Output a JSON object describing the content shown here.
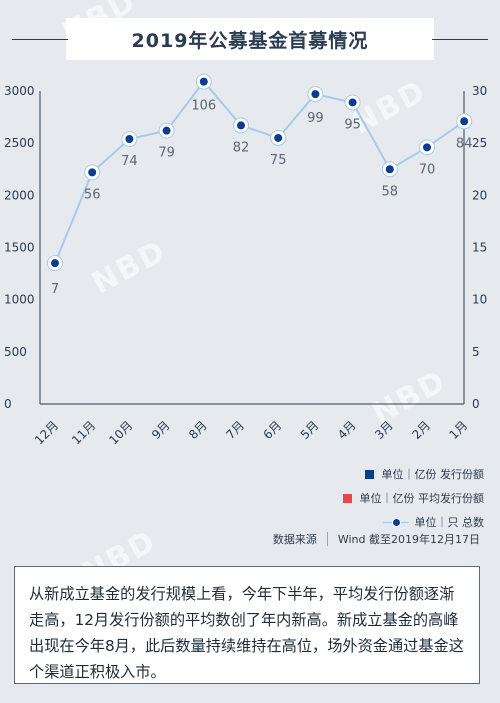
{
  "title": "2019年公募基金首募情况",
  "watermark": "NBD",
  "chart_data": {
    "type": "line",
    "categories": [
      "12月",
      "11月",
      "10月",
      "9月",
      "8月",
      "7月",
      "6月",
      "5月",
      "4月",
      "3月",
      "2月",
      "1月"
    ],
    "series": [
      {
        "name": "单位｜只 总数",
        "values": [
          7,
          56,
          74,
          79,
          106,
          82,
          75,
          99,
          95,
          58,
          70,
          84
        ],
        "axis": "right"
      }
    ],
    "left_axis": {
      "ticks": [
        0,
        500,
        1000,
        1500,
        2000,
        2500,
        3000
      ],
      "ylim": [
        0,
        3000
      ]
    },
    "right_axis": {
      "ticks": [
        0,
        5,
        10,
        15,
        20,
        25,
        30
      ],
      "ylim": [
        0,
        30
      ]
    },
    "point_left_values": [
      1350,
      2220,
      2540,
      2620,
      3090,
      2670,
      2550,
      2970,
      2890,
      2250,
      2460,
      2710
    ],
    "grid": false,
    "line_color": "#a9c9ea",
    "marker_color": "#0a3d8f"
  },
  "legend": [
    {
      "label": "单位｜亿份  发行份额",
      "color": "#0a3d8f"
    },
    {
      "label": "单位｜亿份  平均发行份额",
      "color": "#e5474b"
    },
    {
      "label": "单位｜只  总数",
      "color": "#0a3d8f"
    }
  ],
  "source": {
    "label": "数据来源",
    "value": "Wind 截至2019年12月17日"
  },
  "note": "从新成立基金的发行规模上看，今年下半年，平均发行份额逐渐走高，12月发行份额的平均数创了年内新高。新成立基金的高峰出现在今年8月，此后数量持续维持在高位，场外资金通过基金这个渠道正积极入市。"
}
